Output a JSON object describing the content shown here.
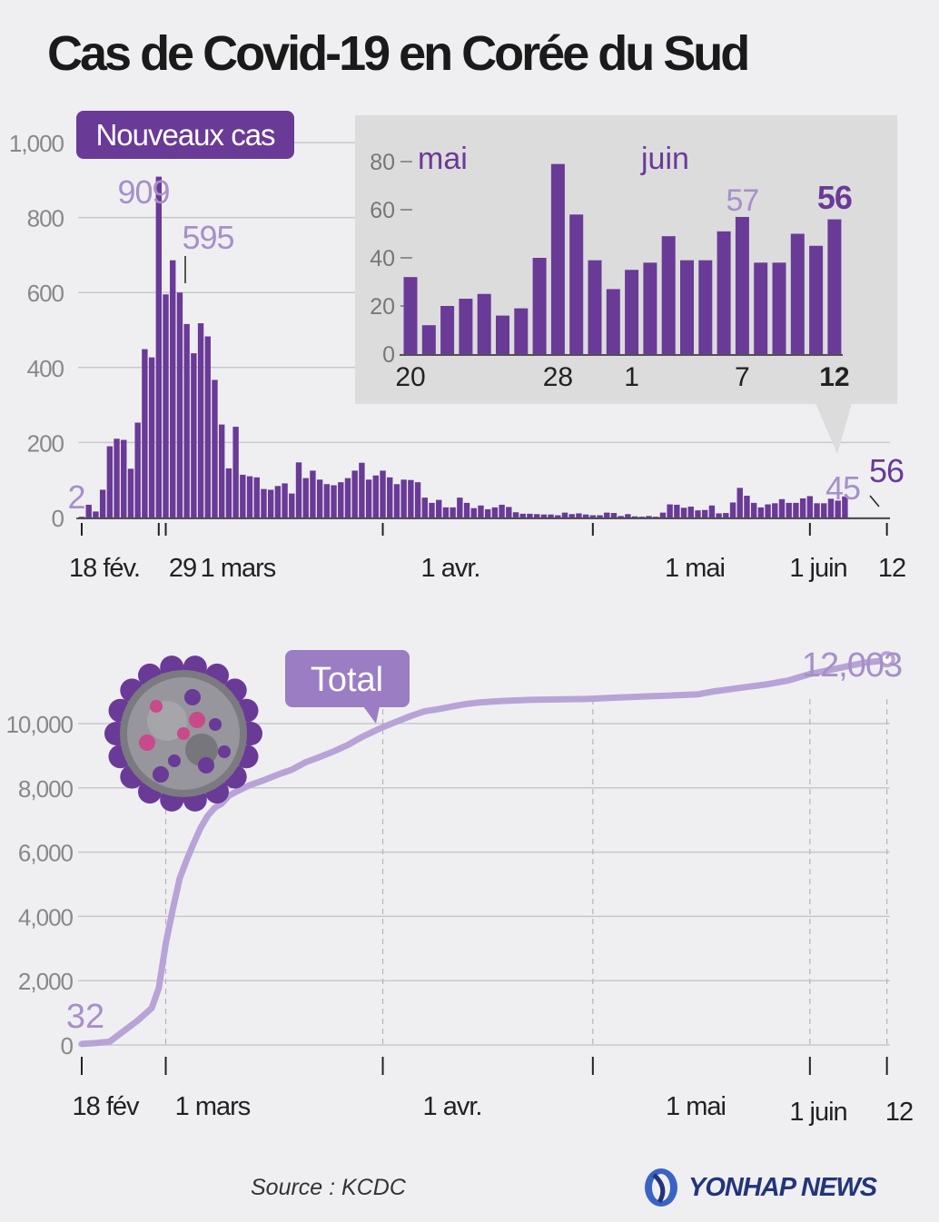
{
  "title": "Cas de Covid-19 en Corée du Sud",
  "source": "Source : KCDC",
  "brand": "YONHAP NEWS",
  "colors": {
    "bar": "#6a3a97",
    "bar_light": "#a690c8",
    "line": "#b8a3d6",
    "inset_bg": "#dcdcdd",
    "grid": "#c9c9cc"
  },
  "chart_data": [
    {
      "type": "bar",
      "title": "Nouveaux cas",
      "ylim": [
        0,
        1000
      ],
      "yticks": [
        "0",
        "200",
        "400",
        "600",
        "800",
        "1,000"
      ],
      "x_ticks": [
        {
          "label": "18 fév.",
          "day": 0
        },
        {
          "label": "29",
          "day": 11
        },
        {
          "label": "1 mars",
          "day": 12
        },
        {
          "label": "1 avr.",
          "day": 43
        },
        {
          "label": "1 mai",
          "day": 73
        },
        {
          "label": "1 juin",
          "day": 104
        },
        {
          "label": "12",
          "day": 115
        }
      ],
      "values": [
        2,
        34,
        16,
        74,
        190,
        210,
        207,
        130,
        253,
        449,
        427,
        909,
        595,
        686,
        600,
        516,
        438,
        518,
        483,
        367,
        248,
        131,
        242,
        114,
        110,
        107,
        76,
        74,
        84,
        91,
        64,
        147,
        105,
        125,
        101,
        89,
        86,
        94,
        105,
        125,
        146,
        101,
        112,
        125,
        107,
        89,
        101,
        100,
        94,
        53,
        39,
        47,
        27,
        27,
        53,
        39,
        25,
        32,
        22,
        27,
        34,
        28,
        14,
        10,
        10,
        9,
        8,
        8,
        6,
        13,
        9,
        11,
        8,
        6,
        6,
        13,
        12,
        4,
        9,
        3,
        2,
        4,
        2,
        13,
        35,
        34,
        26,
        29,
        19,
        20,
        32,
        11,
        12,
        40,
        79,
        58,
        39,
        27,
        35,
        38,
        49,
        39,
        39,
        51,
        57,
        38,
        38,
        50,
        45,
        56
      ],
      "annotations": [
        {
          "label": "2",
          "index": 0
        },
        {
          "label": "909",
          "index": 11
        },
        {
          "label": "595",
          "index": 12
        },
        {
          "label": "45",
          "index": 113
        },
        {
          "label": "56",
          "index": 114
        }
      ]
    },
    {
      "type": "bar",
      "title": "inset",
      "ylim": [
        0,
        80
      ],
      "yticks": [
        "0",
        "20",
        "40",
        "60",
        "80"
      ],
      "month_labels": [
        "mai",
        "juin"
      ],
      "x_ticks": [
        "20",
        "28",
        "1",
        "7",
        "12"
      ],
      "values": [
        32,
        12,
        20,
        23,
        25,
        16,
        19,
        40,
        79,
        58,
        39,
        27,
        35,
        38,
        49,
        39,
        39,
        51,
        57,
        38,
        38,
        50,
        45,
        56
      ],
      "annotations": [
        {
          "label": "57",
          "index": 18
        },
        {
          "label": "56",
          "index": 23
        }
      ]
    },
    {
      "type": "line",
      "title": "Total",
      "ylim": [
        0,
        12000
      ],
      "yticks": [
        "0",
        "2,000",
        "4,000",
        "6,000",
        "8,000",
        "10,000"
      ],
      "x_ticks": [
        {
          "label": "18 fév",
          "day": 0
        },
        {
          "label": "1 mars",
          "day": 12
        },
        {
          "label": "1 avr.",
          "day": 43
        },
        {
          "label": "1 mai",
          "day": 73
        },
        {
          "label": "1 juin",
          "day": 104
        },
        {
          "label": "12",
          "day": 115
        }
      ],
      "points": [
        [
          0,
          32
        ],
        [
          2,
          60
        ],
        [
          4,
          104
        ],
        [
          6,
          433
        ],
        [
          8,
          763
        ],
        [
          10,
          1146
        ],
        [
          11,
          1766
        ],
        [
          12,
          3150
        ],
        [
          13,
          4212
        ],
        [
          14,
          5186
        ],
        [
          15,
          5766
        ],
        [
          16,
          6284
        ],
        [
          17,
          6767
        ],
        [
          18,
          7134
        ],
        [
          19,
          7382
        ],
        [
          20,
          7513
        ],
        [
          21,
          7755
        ],
        [
          22,
          7869
        ],
        [
          24,
          8086
        ],
        [
          26,
          8236
        ],
        [
          28,
          8413
        ],
        [
          30,
          8565
        ],
        [
          32,
          8799
        ],
        [
          34,
          8961
        ],
        [
          36,
          9137
        ],
        [
          38,
          9332
        ],
        [
          40,
          9583
        ],
        [
          42,
          9786
        ],
        [
          43,
          9887
        ],
        [
          45,
          10062
        ],
        [
          47,
          10237
        ],
        [
          49,
          10384
        ],
        [
          51,
          10450
        ],
        [
          53,
          10537
        ],
        [
          55,
          10613
        ],
        [
          57,
          10661
        ],
        [
          60,
          10702
        ],
        [
          64,
          10738
        ],
        [
          68,
          10752
        ],
        [
          72,
          10765
        ],
        [
          73,
          10774
        ],
        [
          76,
          10806
        ],
        [
          80,
          10840
        ],
        [
          84,
          10874
        ],
        [
          88,
          10909
        ],
        [
          90,
          10991
        ],
        [
          94,
          11110
        ],
        [
          98,
          11225
        ],
        [
          101,
          11344
        ],
        [
          104,
          11541
        ],
        [
          106,
          11629
        ],
        [
          108,
          11719
        ],
        [
          110,
          11814
        ],
        [
          112,
          11902
        ],
        [
          114,
          11947
        ],
        [
          115,
          12003
        ]
      ],
      "annotations": [
        {
          "label": "32",
          "day": 0
        },
        {
          "label": "12,003",
          "day": 115
        }
      ]
    }
  ]
}
